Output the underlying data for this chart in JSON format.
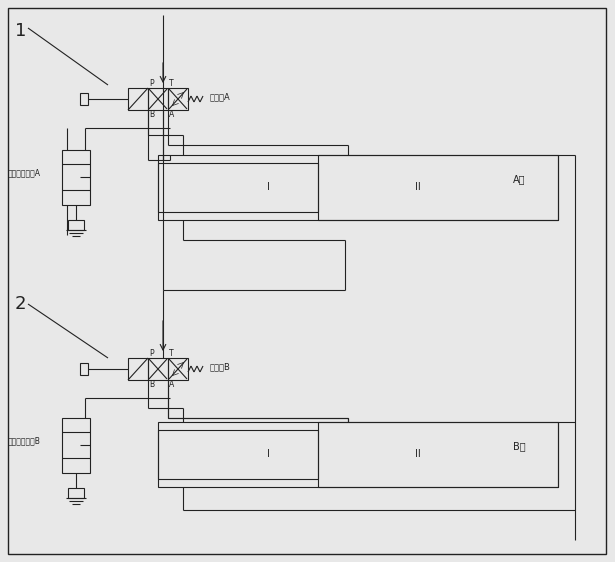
{
  "bg_color": "#e8e8e8",
  "line_color": "#222222",
  "lw": 0.8,
  "fig_width": 6.15,
  "fig_height": 5.62,
  "label_1": "1",
  "label_2": "2",
  "label_A_cylinder": "A缸",
  "label_B_cylinder": "B缸",
  "label_valve_A": "换向阀A",
  "label_valve_B": "换向阀B",
  "label_linkA": "齿柄连杆机构A",
  "label_linkB": "齿柄连杆机构B",
  "label_I_A": "I",
  "label_II_A": "II",
  "label_I_B": "I",
  "label_II_B": "II"
}
